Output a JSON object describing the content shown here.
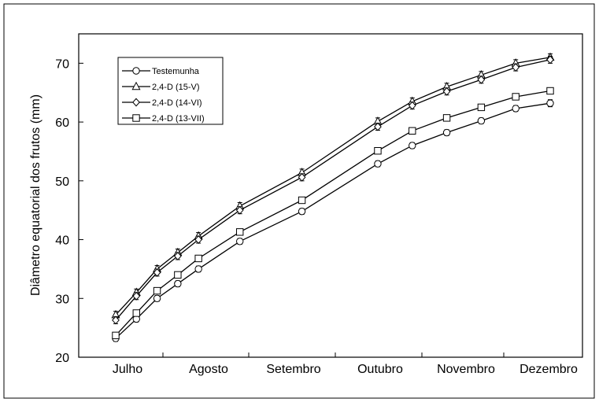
{
  "chart_data": {
    "type": "line",
    "title": "",
    "xlabel": "",
    "ylabel": "Diâmetro equatorial dos frutos (mm)",
    "ylim": [
      20,
      75
    ],
    "yticks": [
      20,
      30,
      40,
      50,
      60,
      70
    ],
    "xlim": [
      0,
      6
    ],
    "categories": [
      "Julho",
      "Agosto",
      "Setembro",
      "Outubro",
      "Novembro",
      "Dezembro"
    ],
    "x": [
      0.2,
      0.5,
      0.8,
      1.1,
      1.4,
      2.0,
      2.9,
      4.0,
      4.5,
      5.0,
      5.5,
      6.0,
      6.5
    ],
    "grid": false,
    "legend": {
      "position": "top-left",
      "entries": [
        "Testemunha",
        "2,4-D (15-V)",
        "2,4-D (14-VI)",
        "2,4-D (13-VII)"
      ]
    },
    "series": [
      {
        "name": "Testemunha",
        "marker": "circle",
        "values": [
          23.2,
          26.5,
          30.0,
          32.5,
          35.0,
          39.7,
          44.8,
          52.9,
          56.0,
          58.2,
          60.2,
          62.3,
          63.2
        ],
        "errors": [
          0.5,
          0.5,
          0.5,
          0.5,
          0.5,
          0.5,
          0.5,
          0.5,
          0.5,
          0.5,
          0.5,
          0.5,
          0.6
        ]
      },
      {
        "name": "2,4-D (15-V)",
        "marker": "triangle",
        "values": [
          27.2,
          31.0,
          35.0,
          37.8,
          40.6,
          45.7,
          51.4,
          60.1,
          63.5,
          66.0,
          68.0,
          70.0,
          71.0
        ],
        "errors": [
          0.6,
          0.6,
          0.6,
          0.6,
          0.6,
          0.6,
          0.6,
          0.6,
          0.6,
          0.6,
          0.6,
          0.6,
          0.6
        ]
      },
      {
        "name": "2,4-D (14-VI)",
        "marker": "diamond",
        "values": [
          26.3,
          30.4,
          34.4,
          37.2,
          40.0,
          45.0,
          50.6,
          59.2,
          62.8,
          65.2,
          67.2,
          69.3,
          70.6
        ],
        "errors": [
          0.6,
          0.6,
          0.6,
          0.6,
          0.6,
          0.6,
          0.6,
          0.6,
          0.6,
          0.6,
          0.6,
          0.6,
          0.6
        ]
      },
      {
        "name": "2,4-D (13-VII)",
        "marker": "square",
        "values": [
          23.7,
          27.5,
          31.3,
          34.0,
          36.8,
          41.3,
          46.7,
          55.1,
          58.5,
          60.7,
          62.5,
          64.3,
          65.3
        ],
        "errors": [
          0.5,
          0.5,
          0.5,
          0.5,
          0.5,
          0.5,
          0.5,
          0.5,
          0.5,
          0.5,
          0.5,
          0.5,
          0.5
        ]
      }
    ]
  }
}
